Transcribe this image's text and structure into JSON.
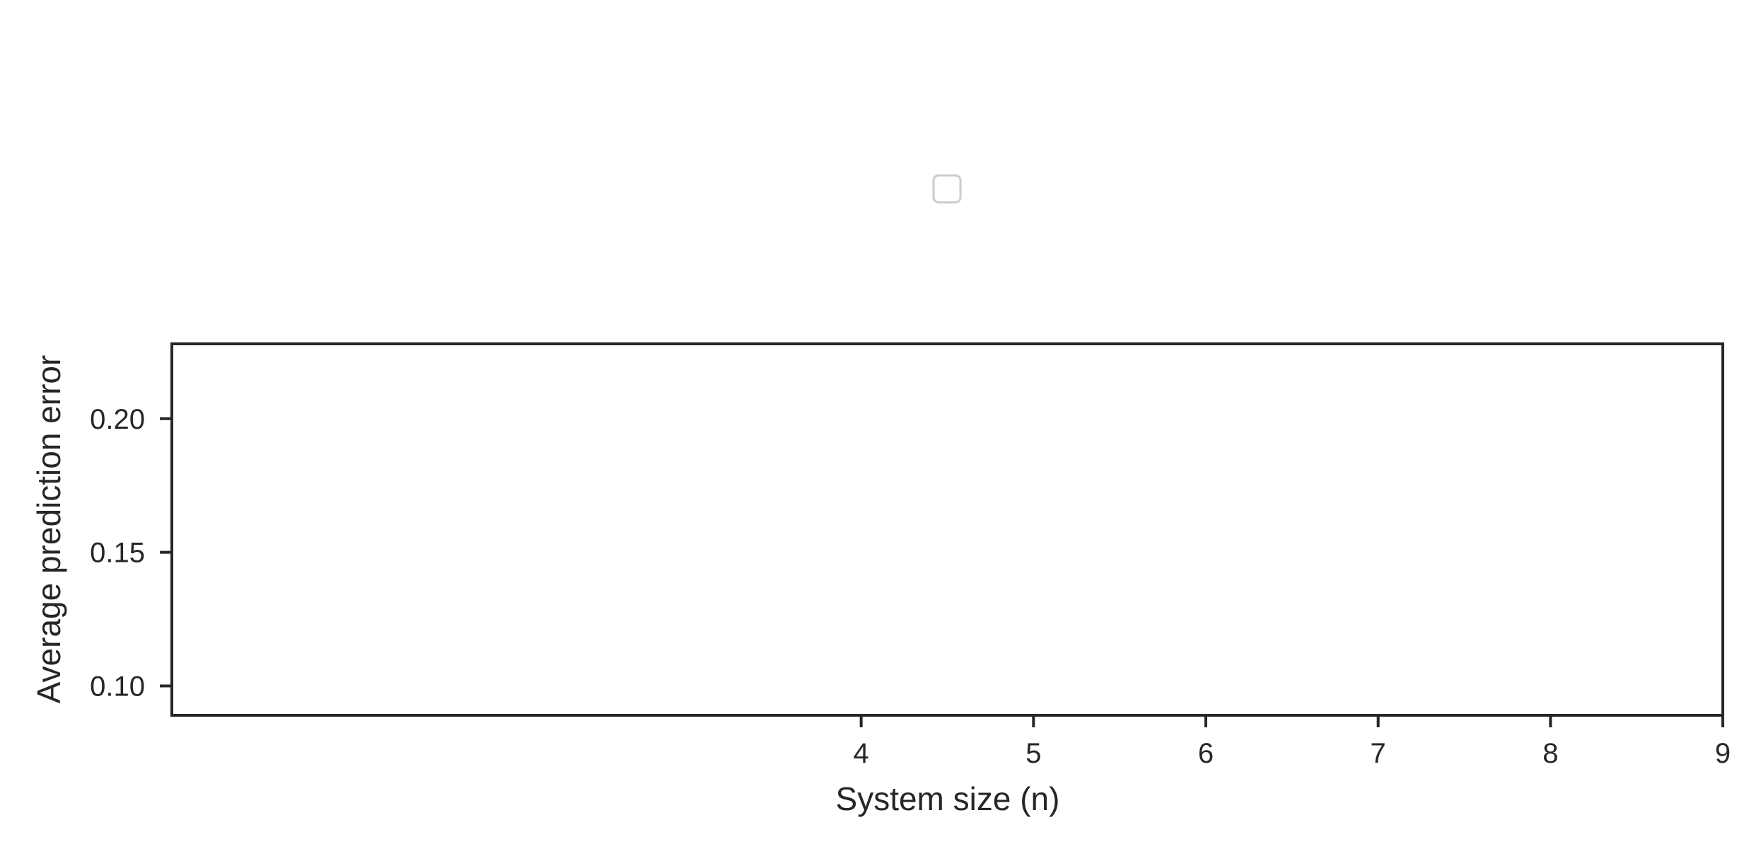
{
  "chart_data": {
    "type": "line",
    "title": "",
    "xlabel": "System size (n)",
    "ylabel": "Average prediction error",
    "x_ticks": [
      4,
      5,
      6,
      7,
      8,
      9
    ],
    "y_ticks": [
      0.1,
      0.15,
      0.2
    ],
    "y_tick_labels": [
      "0.10",
      "0.15",
      "0.20"
    ],
    "xlim": [
      0,
      9
    ],
    "ylim": [
      0.089,
      0.228
    ],
    "series": [],
    "grid": false,
    "legend": {
      "position": "top-center",
      "entries": []
    },
    "colors": {
      "axis": "#262626",
      "legend_border": "#cccccc",
      "background": "#ffffff"
    }
  }
}
